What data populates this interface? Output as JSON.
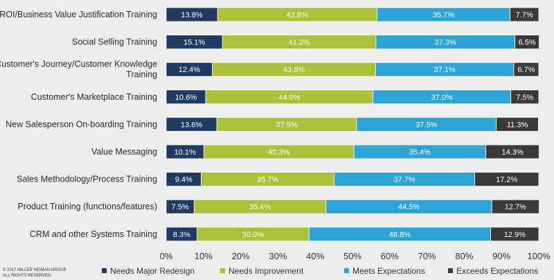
{
  "chart_data": {
    "type": "bar",
    "orientation": "horizontal",
    "stacked": true,
    "categories": [
      "ROI/Business Value Justification Training",
      "Social Selling Training",
      "Customer's Journey/Customer Knowledge Training",
      "Customer's Marketplace Training",
      "New Salesperson On-boarding Training",
      "Value Messaging",
      "Sales Methodology/Process Training",
      "Product Training (functions/features)",
      "CRM and other Systems Training"
    ],
    "category_lines": [
      [
        "ROI/Business Value Justification Training"
      ],
      [
        "Social Selling Training"
      ],
      [
        "Customer's Journey/Customer Knowledge",
        "Training"
      ],
      [
        "Customer's Marketplace Training"
      ],
      [
        "New Salesperson On-boarding Training"
      ],
      [
        "Value Messaging"
      ],
      [
        "Sales Methodology/Process Training"
      ],
      [
        "Product Training (functions/features)"
      ],
      [
        "CRM and other Systems Training"
      ]
    ],
    "series": [
      {
        "name": "Needs Major Redesign",
        "color": "#1f3a63",
        "label_color": "#ffffff",
        "values": [
          13.8,
          15.1,
          12.4,
          10.6,
          13.6,
          10.1,
          9.4,
          7.5,
          8.3
        ],
        "labels": [
          "13.8%",
          "15.1%",
          "12.4%",
          "10.6%",
          "13.6%",
          "10.1%",
          "9.4%",
          "7.5%",
          "8.3%"
        ]
      },
      {
        "name": "Needs Improvement",
        "color": "#a9c23a",
        "label_color": "#ffffff",
        "values": [
          42.8,
          41.2,
          43.8,
          44.9,
          37.5,
          40.3,
          35.7,
          35.4,
          30.0
        ],
        "labels": [
          "42.8%",
          "41.2%",
          "43.8%",
          "44.9%",
          "37.5%",
          "40.3%",
          "35.7%",
          "35.4%",
          "30.0%"
        ]
      },
      {
        "name": "Meets Expectations",
        "color": "#2ea3d6",
        "label_color": "#ffffff",
        "values": [
          35.7,
          37.3,
          37.1,
          37.0,
          37.5,
          35.4,
          37.7,
          44.5,
          48.8
        ],
        "labels": [
          "35.7%",
          "37.3%",
          "37.1%",
          "37.0%",
          "37.5%",
          "35.4%",
          "37.7%",
          "44.5%",
          "48.8%"
        ]
      },
      {
        "name": "Exceeds Expectations",
        "color": "#3a3a3a",
        "label_color": "#ffffff",
        "values": [
          7.7,
          6.5,
          6.7,
          7.5,
          11.3,
          14.3,
          17.2,
          12.7,
          12.9
        ],
        "labels": [
          "7.7%",
          "6.5%",
          "6.7%",
          "7.5%",
          "11.3%",
          "14.3%",
          "17.2%",
          "12.7%",
          "12.9%"
        ]
      }
    ],
    "xlim": [
      0,
      100
    ],
    "xticks": [
      0,
      10,
      20,
      30,
      40,
      50,
      60,
      70,
      80,
      90,
      100
    ],
    "xtick_labels": [
      "0%",
      "10%",
      "20%",
      "30%",
      "40%",
      "50%",
      "60%",
      "70%",
      "80%",
      "90%",
      "100%"
    ],
    "grid": false,
    "legend_position": "bottom"
  },
  "footer": {
    "copyright_lines": [
      "© 2017 MILLER HEIMAN GROUP.",
      "ALL RIGHTS RESERVED."
    ]
  }
}
